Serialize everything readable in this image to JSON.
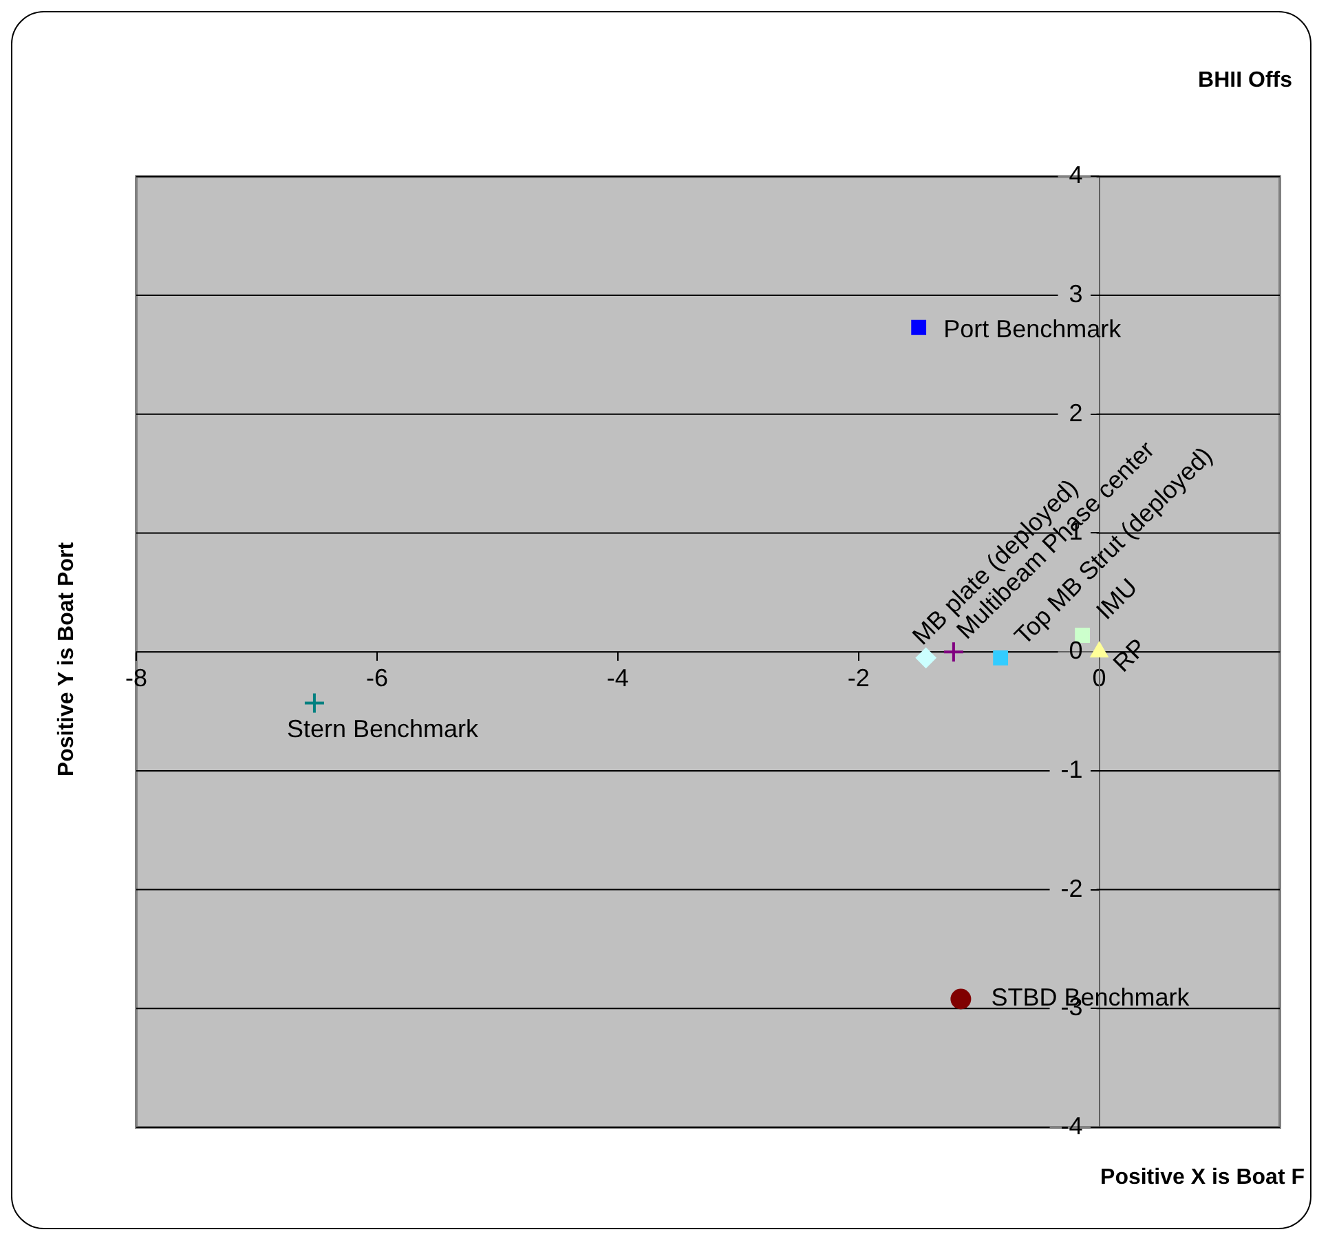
{
  "chart_data": {
    "type": "scatter",
    "title": "BHII Offs",
    "xlabel": "Positive X is Boat F",
    "ylabel": "Positive Y is Boat Port",
    "xlim": [
      -8,
      1.5
    ],
    "xticks": [
      -8,
      -6,
      -4,
      -2,
      0
    ],
    "ylim": [
      -4,
      4
    ],
    "yticks": [
      -4,
      -3,
      -2,
      -1,
      0,
      1,
      2,
      3,
      4
    ],
    "grid": "y",
    "legend": false,
    "series": [
      {
        "name": "Port Benchmark",
        "color": "#0000ff",
        "marker": "square",
        "x": [
          -1.5
        ],
        "values": [
          2.73
        ]
      },
      {
        "name": "Stern Benchmark",
        "color": "#008080",
        "marker": "cross",
        "x": [
          -6.52
        ],
        "values": [
          -0.43
        ]
      },
      {
        "name": "MB plate (deployed)",
        "color": "#ccffff",
        "marker": "diamond",
        "x": [
          -1.44
        ],
        "values": [
          -0.05
        ]
      },
      {
        "name": "Multibeam Phase center",
        "color": "#800080",
        "marker": "cross",
        "x": [
          -1.21
        ],
        "values": [
          0
        ]
      },
      {
        "name": "Top MB Strut (deployed)",
        "color": "#33ccff",
        "marker": "square",
        "x": [
          -0.82
        ],
        "values": [
          -0.05
        ]
      },
      {
        "name": "IMU",
        "color": "#ccffcc",
        "marker": "square",
        "x": [
          -0.14
        ],
        "values": [
          0.14
        ]
      },
      {
        "name": "RP",
        "color": "#ffff99",
        "marker": "triangle",
        "x": [
          0
        ],
        "values": [
          0
        ]
      },
      {
        "name": "STBD Benchmark",
        "color": "#800000",
        "marker": "circle",
        "x": [
          -1.15
        ],
        "values": [
          -2.92
        ]
      }
    ]
  }
}
